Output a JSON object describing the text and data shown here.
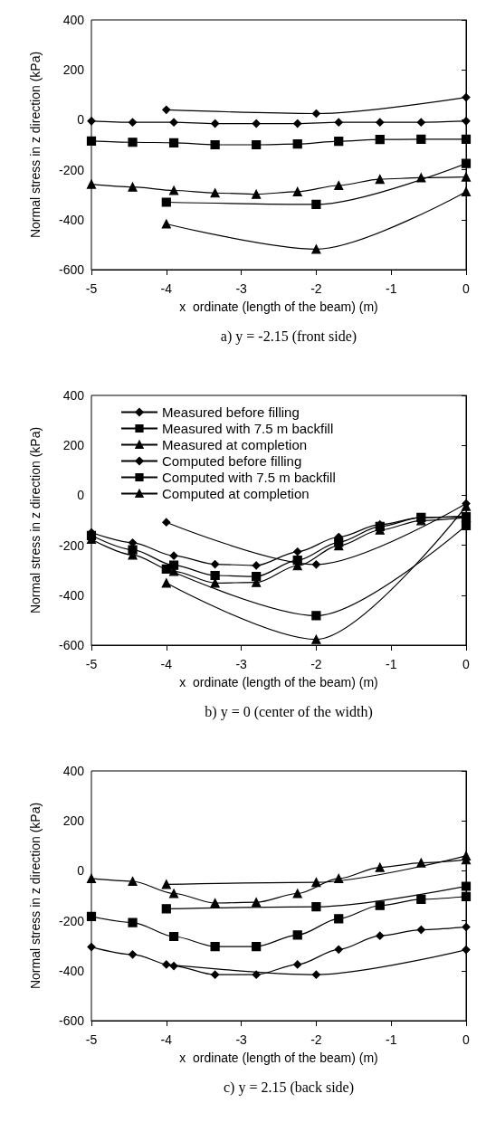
{
  "chart_data": [
    {
      "type": "line",
      "title": "a) y = -2.15 (front side)",
      "xlabel": "x  ordinate (length of the beam) (m)",
      "ylabel": "Normal stress in z direction (kPa)",
      "xlim": [
        -5,
        0
      ],
      "xticks": [
        -5,
        -4,
        -3,
        -2,
        -1,
        0
      ],
      "ylim": [
        -600,
        400
      ],
      "yticks": [
        -600,
        -400,
        -200,
        0,
        200,
        400
      ],
      "grid": false,
      "legend": false,
      "series": [
        {
          "color": "#000000",
          "marker": "diamond",
          "x": [
            -4,
            -2,
            0
          ],
          "values": [
            40,
            25,
            90
          ]
        },
        {
          "color": "#000000",
          "marker": "square",
          "x": [
            -4,
            -2,
            0
          ],
          "values": [
            -330,
            -339,
            -175
          ]
        },
        {
          "color": "#000000",
          "marker": "triangle",
          "x": [
            -4,
            -2,
            0
          ],
          "values": [
            -417,
            -518,
            -288
          ]
        },
        {
          "color": "#000000",
          "marker": "diamond",
          "x": [
            -5,
            -4.45,
            -3.9,
            -3.35,
            -2.8,
            -2.25,
            -1.7,
            -1.15,
            -0.6,
            0
          ],
          "values": [
            -5,
            -10,
            -10,
            -15,
            -15,
            -15,
            -10,
            -10,
            -10,
            -5
          ]
        },
        {
          "color": "#000000",
          "marker": "square",
          "x": [
            -5,
            -4.45,
            -3.9,
            -3.35,
            -2.8,
            -2.25,
            -1.7,
            -1.15,
            -0.6,
            0
          ],
          "values": [
            -85,
            -90,
            -92,
            -100,
            -100,
            -97,
            -86,
            -79,
            -78,
            -78
          ]
        },
        {
          "color": "#000000",
          "marker": "triangle",
          "x": [
            -5,
            -4.45,
            -3.9,
            -3.35,
            -2.8,
            -2.25,
            -1.7,
            -1.15,
            -0.6,
            0
          ],
          "values": [
            -258,
            -269,
            -283,
            -293,
            -298,
            -288,
            -263,
            -238,
            -232,
            -229
          ]
        }
      ]
    },
    {
      "type": "line",
      "title": "b) y = 0 (center of the width)",
      "xlabel": "x  ordinate (length of the beam) (m)",
      "ylabel": "Normal stress in z direction (kPa)",
      "xlim": [
        -5,
        0
      ],
      "xticks": [
        -5,
        -4,
        -3,
        -2,
        -1,
        0
      ],
      "ylim": [
        -600,
        400
      ],
      "yticks": [
        -600,
        -400,
        -200,
        0,
        200,
        400
      ],
      "grid": false,
      "legend": "top left",
      "series": [
        {
          "name": "Measured before filling",
          "color": "#000000",
          "marker": "diamond",
          "x": [
            -4,
            -2,
            0
          ],
          "values": [
            -108,
            -277,
            -33
          ]
        },
        {
          "name": "Measured with 7.5 m backfill",
          "color": "#000000",
          "marker": "square",
          "x": [
            -4,
            -2,
            0
          ],
          "values": [
            -295,
            -482,
            -121
          ]
        },
        {
          "name": "Measured at completion",
          "color": "#000000",
          "marker": "triangle",
          "x": [
            -4,
            -2,
            0
          ],
          "values": [
            -351,
            -577,
            -44
          ]
        },
        {
          "name": "Computed before filling",
          "color": "#000000",
          "marker": "diamond",
          "x": [
            -5,
            -4.45,
            -3.9,
            -3.35,
            -2.8,
            -2.25,
            -1.7,
            -1.15,
            -0.6,
            0
          ],
          "values": [
            -149,
            -190,
            -242,
            -276,
            -281,
            -226,
            -167,
            -117,
            -89,
            -83
          ]
        },
        {
          "name": "Computed with 7.5 m backfill",
          "color": "#000000",
          "marker": "square",
          "x": [
            -5,
            -4.45,
            -3.9,
            -3.35,
            -2.8,
            -2.25,
            -1.7,
            -1.15,
            -0.6,
            0
          ],
          "values": [
            -161,
            -218,
            -280,
            -321,
            -325,
            -260,
            -188,
            -125,
            -89,
            -86
          ]
        },
        {
          "name": "Computed at completion",
          "color": "#000000",
          "marker": "triangle",
          "x": [
            -5,
            -4.45,
            -3.9,
            -3.35,
            -2.8,
            -2.25,
            -1.7,
            -1.15,
            -0.6,
            0
          ],
          "values": [
            -176,
            -239,
            -304,
            -351,
            -349,
            -282,
            -202,
            -139,
            -101,
            -89
          ]
        }
      ]
    },
    {
      "type": "line",
      "title": "c) y = 2.15 (back side)",
      "xlabel": "x  ordinate (length of the beam) (m)",
      "ylabel": "Normal stress in z direction (kPa)",
      "xlim": [
        -5,
        0
      ],
      "xticks": [
        -5,
        -4,
        -3,
        -2,
        -1,
        0
      ],
      "ylim": [
        -600,
        400
      ],
      "yticks": [
        -600,
        -400,
        -200,
        0,
        200,
        400
      ],
      "grid": false,
      "legend": false,
      "series": [
        {
          "color": "#000000",
          "marker": "diamond",
          "x": [
            -4,
            -2,
            0
          ],
          "values": [
            -375,
            -416,
            -316
          ]
        },
        {
          "color": "#000000",
          "marker": "square",
          "x": [
            -4,
            -2,
            0
          ],
          "values": [
            -152,
            -144,
            -62
          ]
        },
        {
          "color": "#000000",
          "marker": "triangle",
          "x": [
            -4,
            -2,
            0
          ],
          "values": [
            -54,
            -46,
            60
          ]
        },
        {
          "color": "#000000",
          "marker": "diamond",
          "x": [
            -5,
            -4.45,
            -3.9,
            -3.35,
            -2.8,
            -2.25,
            -1.7,
            -1.15,
            -0.6,
            0
          ],
          "values": [
            -305,
            -335,
            -381,
            -416,
            -416,
            -375,
            -315,
            -260,
            -236,
            -225
          ]
        },
        {
          "color": "#000000",
          "marker": "square",
          "x": [
            -5,
            -4.45,
            -3.9,
            -3.35,
            -2.8,
            -2.25,
            -1.7,
            -1.15,
            -0.6,
            0
          ],
          "values": [
            -183,
            -207,
            -263,
            -303,
            -303,
            -257,
            -192,
            -139,
            -114,
            -103
          ]
        },
        {
          "color": "#000000",
          "marker": "triangle",
          "x": [
            -5,
            -4.45,
            -3.9,
            -3.35,
            -2.8,
            -2.25,
            -1.7,
            -1.15,
            -0.6,
            0
          ],
          "values": [
            -31,
            -42,
            -91,
            -129,
            -126,
            -91,
            -31,
            14,
            32,
            44
          ]
        }
      ]
    }
  ]
}
